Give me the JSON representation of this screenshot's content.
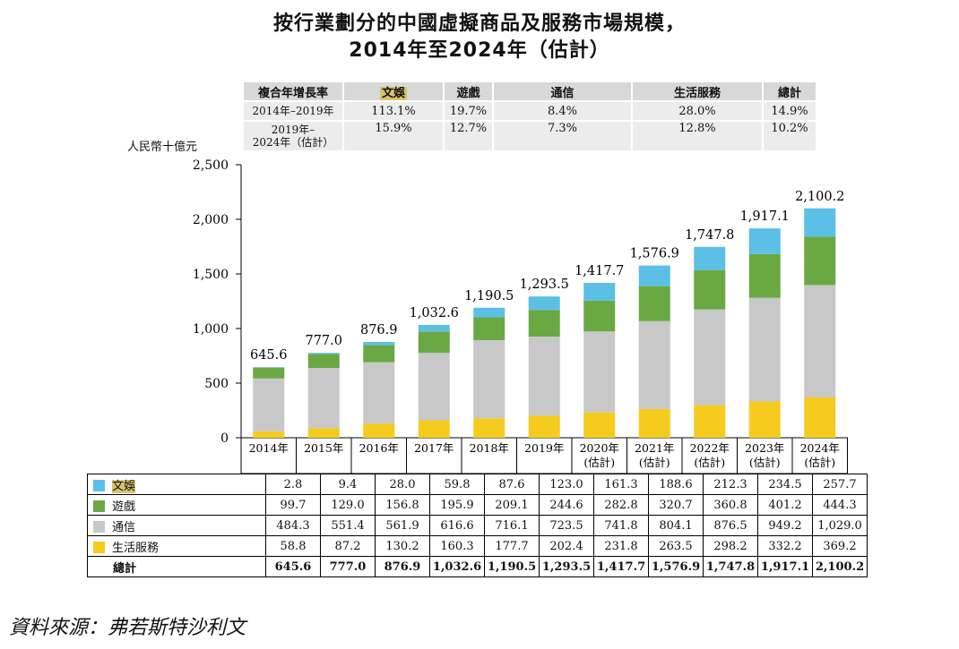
{
  "title_line1": "按行業劃分的中國虛擬商品及服務市場規模，",
  "title_line2": "2014年至2024年（估計）",
  "unit_label": "人民幣十億元",
  "cagr_table": {
    "headers": [
      "複合年增長率",
      "文娛",
      "遊戲",
      "通信",
      "生活服務",
      "總計"
    ],
    "rows": [
      {
        "label": "2014年–2019年",
        "values": [
          "113.1%",
          "19.7%",
          "8.4%",
          "28.0%",
          "14.9%"
        ]
      },
      {
        "label_line1": "2019年–",
        "label_line2": "2024年（估計）",
        "values": [
          "15.9%",
          "12.7%",
          "7.3%",
          "12.8%",
          "10.2%"
        ]
      }
    ]
  },
  "chart_data": {
    "type": "bar",
    "stacked": true,
    "categories": [
      "2014年",
      "2015年",
      "2016年",
      "2017年",
      "2018年",
      "2019年",
      "2020年\n(估計)",
      "2021年\n(估計)",
      "2022年\n(估計)",
      "2023年\n(估計)",
      "2024年\n(估計)"
    ],
    "category_labels": [
      [
        "2014年",
        ""
      ],
      [
        "2015年",
        ""
      ],
      [
        "2016年",
        ""
      ],
      [
        "2017年",
        ""
      ],
      [
        "2018年",
        ""
      ],
      [
        "2019年",
        ""
      ],
      [
        "2020年",
        "(估計)"
      ],
      [
        "2021年",
        "(估計)"
      ],
      [
        "2022年",
        "(估計)"
      ],
      [
        "2023年",
        "(估計)"
      ],
      [
        "2024年",
        "(估計)"
      ]
    ],
    "series": [
      {
        "name": "生活服務",
        "color": "#f5cb1d",
        "values": [
          58.8,
          87.2,
          130.2,
          160.3,
          177.7,
          202.4,
          231.8,
          263.5,
          298.2,
          332.2,
          369.2
        ]
      },
      {
        "name": "通信",
        "color": "#c8c8c8",
        "values": [
          484.3,
          551.4,
          561.9,
          616.6,
          716.1,
          723.5,
          741.8,
          804.1,
          876.5,
          949.2,
          1029.0
        ]
      },
      {
        "name": "遊戲",
        "color": "#6aa843",
        "values": [
          99.7,
          129.0,
          156.8,
          195.9,
          209.1,
          244.6,
          282.8,
          320.7,
          360.8,
          401.2,
          444.3
        ]
      },
      {
        "name": "文娛",
        "color": "#5bbfe6",
        "values": [
          2.8,
          9.4,
          28.0,
          59.8,
          87.6,
          123.0,
          161.3,
          188.6,
          212.3,
          234.5,
          257.7
        ]
      }
    ],
    "totals": [
      "645.6",
      "777.0",
      "876.9",
      "1,032.6",
      "1,190.5",
      "1,293.5",
      "1,417.7",
      "1,576.9",
      "1,747.8",
      "1,917.1",
      "2,100.2"
    ],
    "ylim": [
      0,
      2500
    ],
    "yticks": [
      "0",
      "500",
      "1,000",
      "1,500",
      "2,000",
      "2,500"
    ],
    "ylabel": "人民幣十億元"
  },
  "data_table": {
    "rows": [
      {
        "label": "文娛",
        "color": "#5bbfe6",
        "values": [
          "2.8",
          "9.4",
          "28.0",
          "59.8",
          "87.6",
          "123.0",
          "161.3",
          "188.6",
          "212.3",
          "234.5",
          "257.7"
        ]
      },
      {
        "label": "遊戲",
        "color": "#6aa843",
        "values": [
          "99.7",
          "129.0",
          "156.8",
          "195.9",
          "209.1",
          "244.6",
          "282.8",
          "320.7",
          "360.8",
          "401.2",
          "444.3"
        ]
      },
      {
        "label": "通信",
        "color": "#c8c8c8",
        "values": [
          "484.3",
          "551.4",
          "561.9",
          "616.6",
          "716.1",
          "723.5",
          "741.8",
          "804.1",
          "876.5",
          "949.2",
          "1,029.0"
        ]
      },
      {
        "label": "生活服務",
        "color": "#f5cb1d",
        "values": [
          "58.8",
          "87.2",
          "130.2",
          "160.3",
          "177.7",
          "202.4",
          "231.8",
          "263.5",
          "298.2",
          "332.2",
          "369.2"
        ]
      }
    ],
    "total_label": "總計",
    "total_values": [
      "645.6",
      "777.0",
      "876.9",
      "1,032.6",
      "1,190.5",
      "1,293.5",
      "1,417.7",
      "1,576.9",
      "1,747.8",
      "1,917.1",
      "2,100.2"
    ]
  },
  "source": "資料來源：弗若斯特沙利文"
}
